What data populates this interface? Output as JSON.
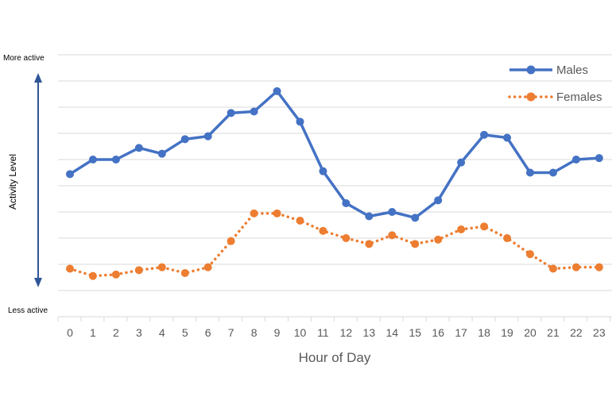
{
  "chart_data": {
    "type": "line",
    "title": "",
    "xlabel": "Hour of Day",
    "ylabel": "Activity Level",
    "y_top_label": "More active",
    "y_bottom_label": "Less active",
    "categories": [
      "0",
      "1",
      "2",
      "3",
      "4",
      "5",
      "6",
      "7",
      "8",
      "9",
      "10",
      "11",
      "12",
      "13",
      "14",
      "15",
      "16",
      "17",
      "18",
      "19",
      "20",
      "21",
      "22",
      "23"
    ],
    "ylim": [
      0,
      9
    ],
    "y_ticks_shown": false,
    "grid": true,
    "legend_position": "top-right",
    "series": [
      {
        "name": "Males",
        "color": "#4472c4",
        "line_style": "solid",
        "values": [
          4.9,
          5.4,
          5.4,
          5.8,
          5.6,
          6.1,
          6.2,
          7.0,
          7.05,
          7.75,
          6.7,
          5.0,
          3.9,
          3.45,
          3.6,
          3.4,
          4.0,
          5.3,
          6.25,
          6.15,
          4.95,
          4.95,
          5.4,
          5.45
        ]
      },
      {
        "name": "Females",
        "color": "#ed7d31",
        "line_style": "dotted",
        "values": [
          1.65,
          1.4,
          1.45,
          1.6,
          1.7,
          1.5,
          1.7,
          2.6,
          3.55,
          3.55,
          3.3,
          2.95,
          2.7,
          2.5,
          2.8,
          2.5,
          2.65,
          3.0,
          3.1,
          2.7,
          2.15,
          1.65,
          1.7,
          1.7
        ]
      }
    ]
  }
}
